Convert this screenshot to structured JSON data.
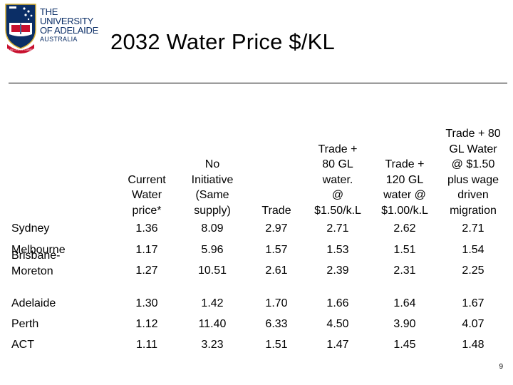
{
  "logo": {
    "line1": "THE UNIVERSITY",
    "line2": "OF ADELAIDE",
    "country": "AUSTRALIA",
    "motto": "SUB CRUCE LUMEN",
    "colors": {
      "navy": "#0b2e66",
      "red": "#c8102e",
      "gold": "#d8b035"
    }
  },
  "slide": {
    "title": "2032 Water Price $/KL",
    "page_number": "9"
  },
  "table": {
    "headers": [
      "",
      "Current Water price*",
      "No Initiative (Same supply)",
      "Trade",
      "Trade + 80 GL water. @ $1.50/k.L",
      "Trade + 120 GL water @ $1.00/k.L",
      "Trade + 80 GL Water @ $1.50 plus wage driven migration"
    ],
    "rows": [
      [
        "Sydney",
        "1.36",
        "8.09",
        "2.97",
        "2.71",
        "2.62",
        "2.71"
      ],
      [
        "Melbourne",
        "1.17",
        "5.96",
        "1.57",
        "1.53",
        "1.51",
        "1.54"
      ],
      [
        "Brisbane-Moreton",
        "1.27",
        "10.51",
        "2.61",
        "2.39",
        "2.31",
        "2.25"
      ],
      [
        "Adelaide",
        "1.30",
        "1.42",
        "1.70",
        "1.66",
        "1.64",
        "1.67"
      ],
      [
        "Perth",
        "1.12",
        "11.40",
        "6.33",
        "4.50",
        "3.90",
        "4.07"
      ],
      [
        "ACT",
        "1.11",
        "3.23",
        "1.51",
        "1.47",
        "1.45",
        "1.48"
      ]
    ]
  }
}
